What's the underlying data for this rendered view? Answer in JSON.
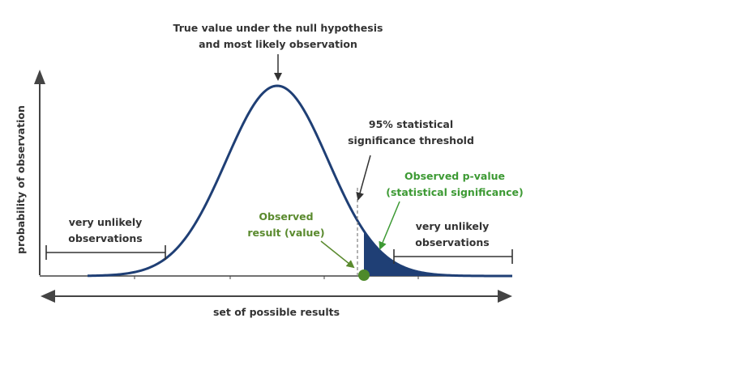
{
  "diagram": {
    "top_label": {
      "line1": "True value under the null hypothesis",
      "line2": "and most likely observation"
    },
    "y_axis_label": "probability of observation",
    "x_axis_label": "set of possible results",
    "threshold_label": {
      "line1": "95% statistical",
      "line2": "significance threshold"
    },
    "p_value_label": {
      "line1": "Observed p-value",
      "line2": "(statistical significance)"
    },
    "observed_label": {
      "line1": "Observed",
      "line2": "result (value)"
    },
    "left_tail_label": {
      "line1": "very unlikely",
      "line2": "observations"
    },
    "right_tail_label": {
      "line1": "very unlikely",
      "line2": "observations"
    },
    "colors": {
      "curve": "#1f3f75",
      "tail_fill": "#1f3f75",
      "observed_point": "#4e8a2a",
      "green_text": "#3d9a34",
      "olive_text": "#5a8a2e",
      "axis": "#444444",
      "text": "#333333"
    }
  }
}
